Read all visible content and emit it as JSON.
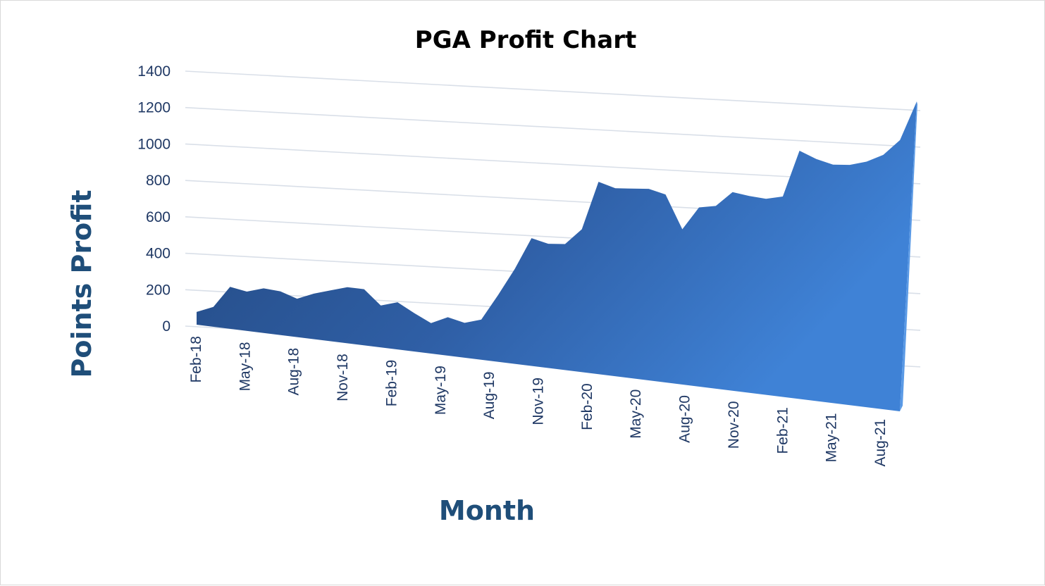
{
  "chart_data": {
    "type": "area",
    "title": "PGA Profit Chart",
    "xlabel": "Month",
    "ylabel": "Points Profit",
    "ylim": [
      0,
      1400
    ],
    "yticks": [
      0,
      200,
      400,
      600,
      800,
      1000,
      1200,
      1400
    ],
    "grid": true,
    "legend": "none",
    "x": [
      "Feb-18",
      "Mar-18",
      "Apr-18",
      "May-18",
      "Jun-18",
      "Jul-18",
      "Aug-18",
      "Sep-18",
      "Oct-18",
      "Nov-18",
      "Dec-18",
      "Jan-19",
      "Feb-19",
      "Mar-19",
      "Apr-19",
      "May-19",
      "Jun-19",
      "Jul-19",
      "Aug-19",
      "Sep-19",
      "Oct-19",
      "Nov-19",
      "Dec-19",
      "Jan-20",
      "Feb-20",
      "Mar-20",
      "Apr-20",
      "May-20",
      "Jun-20",
      "Jul-20",
      "Aug-20",
      "Sep-20",
      "Oct-20",
      "Nov-20",
      "Dec-20",
      "Jan-21",
      "Feb-21",
      "Mar-21",
      "Apr-21",
      "May-21",
      "Jun-21",
      "Jul-21",
      "Aug-21",
      "Sep-21"
    ],
    "tick_labels": [
      "Feb-18",
      "May-18",
      "Aug-18",
      "Nov-18",
      "Feb-19",
      "May-19",
      "Aug-19",
      "Nov-19",
      "Feb-20",
      "May-20",
      "Aug-20",
      "Nov-20",
      "Feb-21",
      "May-21",
      "Aug-21"
    ],
    "series": [
      {
        "values": [
          40,
          70,
          185,
          160,
          180,
          165,
          125,
          155,
          175,
          195,
          185,
          95,
          115,
          55,
          0,
          35,
          5,
          25,
          165,
          315,
          490,
          460,
          460,
          545,
          815,
          780,
          780,
          780,
          750,
          555,
          680,
          690,
          770,
          750,
          735,
          750,
          1010,
          965,
          935,
          935,
          955,
          995,
          1080,
          1300
        ],
        "color": "#2e5fa3"
      }
    ]
  }
}
